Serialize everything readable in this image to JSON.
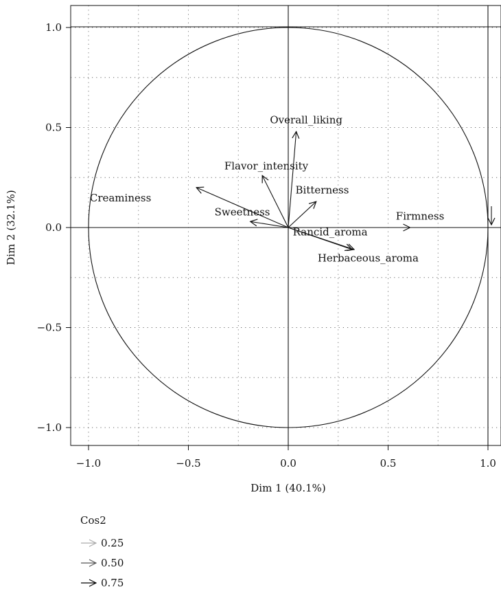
{
  "chart_data": {
    "type": "scatter",
    "xlabel": "Dim 1 (40.1%)",
    "ylabel": "Dim 2 (32.1%)",
    "xlim": [
      -1.1,
      1.1
    ],
    "ylim": [
      -1.1,
      1.1
    ],
    "xticks": [
      -1.0,
      -0.5,
      0.0,
      0.5,
      1.0
    ],
    "yticks": [
      -1.0,
      -0.5,
      0.0,
      0.5,
      1.0
    ],
    "xtick_labels": [
      "−1.0",
      "−0.5",
      "0.0",
      "0.5",
      "1.0"
    ],
    "ytick_labels": [
      "−1.0",
      "−0.5",
      "0.0",
      "0.5",
      "1.0"
    ],
    "grid": true,
    "grid_style": "dotted",
    "unit_circle": true,
    "variables": [
      {
        "name": "Overall_liking",
        "x": 0.04,
        "y": 0.48,
        "label_x": 0.09,
        "label_y": 0.52
      },
      {
        "name": "Flavor_intensity",
        "x": -0.13,
        "y": 0.26,
        "label_x": -0.11,
        "label_y": 0.29
      },
      {
        "name": "Bitterness",
        "x": 0.14,
        "y": 0.13,
        "label_x": 0.17,
        "label_y": 0.17
      },
      {
        "name": "Creaminess",
        "x": -0.46,
        "y": 0.2,
        "label_x": -0.84,
        "label_y": 0.13
      },
      {
        "name": "Sweetness",
        "x": -0.19,
        "y": 0.03,
        "label_x": -0.23,
        "label_y": 0.06
      },
      {
        "name": "Firmness",
        "x": 0.61,
        "y": 0.0,
        "label_x": 0.66,
        "label_y": 0.04
      },
      {
        "name": "Rancid_aroma",
        "x": 0.33,
        "y": -0.11,
        "label_x": 0.21,
        "label_y": -0.04
      },
      {
        "name": "Herbaceous_aroma",
        "x": 0.32,
        "y": -0.11,
        "label_x": 0.4,
        "label_y": -0.17
      }
    ],
    "legend": {
      "title": "Cos2",
      "placement": "bottom-left",
      "entries": [
        {
          "label": "0.25",
          "color": "#aaaaaa"
        },
        {
          "label": "0.50",
          "color": "#555555"
        },
        {
          "label": "0.75",
          "color": "#000000"
        }
      ]
    }
  }
}
